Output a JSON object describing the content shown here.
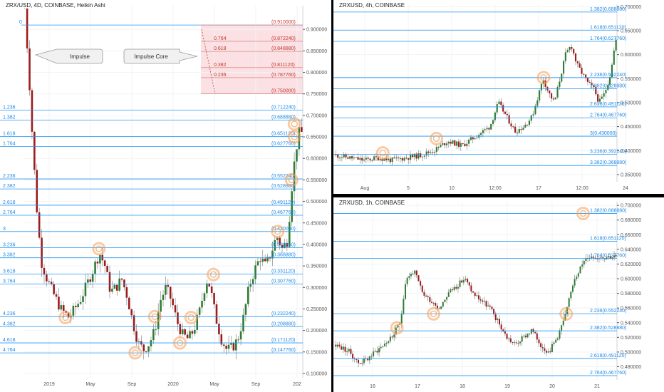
{
  "colors": {
    "up": "#2e7d32",
    "down": "#9b1c1c",
    "fib": "#2196f3",
    "fibText": "#1e88e5",
    "zone": "#f8c9cd",
    "zoneText": "#c0392b",
    "circle": "#f4a05a",
    "grid": "#f1f3f6",
    "axis": "#555555"
  },
  "charts": [
    {
      "id": "left",
      "title": "ZRX/USD, 4D, COINBASE, Heikin Ashi",
      "type": "candlestick",
      "ylim": [
        0.09,
        0.955
      ],
      "y_ticks": [
        "0.900000",
        "0.850000",
        "0.800000",
        "0.750000",
        "0.700000",
        "0.650000",
        "0.600000",
        "0.550000",
        "0.500000",
        "0.450000",
        "0.400000",
        "0.350000",
        "0.300000",
        "0.250000",
        "0.200000",
        "0.150000",
        "0.100000"
      ],
      "x_ticks": [
        "2019",
        "May",
        "Sep",
        "2020",
        "May",
        "Sep",
        "202"
      ],
      "levels": [
        {
          "ratio": "1.236",
          "label": "(0.712240)",
          "value": 0.71224
        },
        {
          "ratio": "1.382",
          "label": "(0.688880)",
          "value": 0.68888
        },
        {
          "ratio": "1.618",
          "label": "(0.651120)",
          "value": 0.65112
        },
        {
          "ratio": "1.764",
          "label": "(0.627760)",
          "value": 0.62776
        },
        {
          "ratio": "2.236",
          "label": "(0.552240)",
          "value": 0.55224
        },
        {
          "ratio": "2.382",
          "label": "(0.528880)",
          "value": 0.52888
        },
        {
          "ratio": "2.618",
          "label": "(0.491120)",
          "value": 0.49112
        },
        {
          "ratio": "2.764",
          "label": "(0.467760)",
          "value": 0.46776
        },
        {
          "ratio": "3",
          "label": "(0.430000)",
          "value": 0.43
        },
        {
          "ratio": "3.236",
          "label": "(0.392240)",
          "value": 0.39224
        },
        {
          "ratio": "3.382",
          "label": "(0.368880)",
          "value": 0.36888
        },
        {
          "ratio": "3.618",
          "label": "(0.331120)",
          "value": 0.33112
        },
        {
          "ratio": "3.764",
          "label": "(0.307760)",
          "value": 0.30776
        },
        {
          "ratio": "4.236",
          "label": "(0.232240)",
          "value": 0.23224
        },
        {
          "ratio": "4.382",
          "label": "(0.208880)",
          "value": 0.20888
        },
        {
          "ratio": "4.618",
          "label": "(0.171120)",
          "value": 0.17112
        },
        {
          "ratio": "4.764",
          "label": "(0.147760)",
          "value": 0.14776
        }
      ],
      "zero_level": {
        "ratio": "0",
        "value": 0.91
      },
      "retracement": [
        {
          "ratio": "",
          "label": "(0.910000)",
          "value": 0.91
        },
        {
          "ratio": "0.764",
          "label": "(0.872240)",
          "value": 0.87224
        },
        {
          "ratio": "0.618",
          "label": "(0.848880)",
          "value": 0.84888
        },
        {
          "ratio": "0.382",
          "label": "(0.811120)",
          "value": 0.81112
        },
        {
          "ratio": "0.236",
          "label": "(0.787760)",
          "value": 0.78776
        },
        {
          "ratio": "",
          "label": "(0.750000)",
          "value": 0.75
        }
      ],
      "callouts": [
        {
          "text": "Impulse",
          "pointer": "left"
        },
        {
          "text": "Impulse Core",
          "pointer": "right"
        }
      ],
      "path": [
        [
          0,
          0.95
        ],
        [
          0.015,
          0.8
        ],
        [
          0.03,
          0.62
        ],
        [
          0.045,
          0.47
        ],
        [
          0.06,
          0.36
        ],
        [
          0.08,
          0.32
        ],
        [
          0.1,
          0.29
        ],
        [
          0.13,
          0.25
        ],
        [
          0.16,
          0.23
        ],
        [
          0.2,
          0.27
        ],
        [
          0.24,
          0.33
        ],
        [
          0.27,
          0.38
        ],
        [
          0.29,
          0.35
        ],
        [
          0.31,
          0.29
        ],
        [
          0.33,
          0.3
        ],
        [
          0.35,
          0.32
        ],
        [
          0.37,
          0.28
        ],
        [
          0.39,
          0.22
        ],
        [
          0.41,
          0.17
        ],
        [
          0.43,
          0.155
        ],
        [
          0.45,
          0.17
        ],
        [
          0.47,
          0.2
        ],
        [
          0.49,
          0.27
        ],
        [
          0.51,
          0.3
        ],
        [
          0.53,
          0.27
        ],
        [
          0.55,
          0.22
        ],
        [
          0.57,
          0.19
        ],
        [
          0.59,
          0.18
        ],
        [
          0.61,
          0.2
        ],
        [
          0.63,
          0.24
        ],
        [
          0.65,
          0.3
        ],
        [
          0.66,
          0.32
        ],
        [
          0.67,
          0.3
        ],
        [
          0.69,
          0.23
        ],
        [
          0.71,
          0.18
        ],
        [
          0.73,
          0.155
        ],
        [
          0.75,
          0.16
        ],
        [
          0.77,
          0.18
        ],
        [
          0.79,
          0.23
        ],
        [
          0.81,
          0.3
        ],
        [
          0.83,
          0.34
        ],
        [
          0.85,
          0.37
        ],
        [
          0.87,
          0.35
        ],
        [
          0.89,
          0.38
        ],
        [
          0.91,
          0.42
        ],
        [
          0.93,
          0.39
        ],
        [
          0.95,
          0.41
        ],
        [
          0.96,
          0.5
        ],
        [
          0.97,
          0.57
        ],
        [
          0.98,
          0.62
        ],
        [
          0.99,
          0.66
        ]
      ],
      "circles": [
        [
          0.97,
          0.68
        ],
        [
          0.97,
          0.65
        ],
        [
          0.96,
          0.55
        ],
        [
          0.91,
          0.43
        ],
        [
          0.27,
          0.39
        ],
        [
          0.15,
          0.23
        ],
        [
          0.6,
          0.23
        ],
        [
          0.47,
          0.232
        ],
        [
          0.4,
          0.148
        ],
        [
          0.56,
          0.171
        ],
        [
          0.68,
          0.33
        ]
      ]
    },
    {
      "id": "top-right",
      "title": "ZRXUSD, 4h, COINBASE",
      "type": "candlestick",
      "ylim": [
        0.335,
        0.705
      ],
      "y_ticks": [
        "0.700000",
        "0.650000",
        "0.600000",
        "0.550000",
        "0.500000",
        "0.450000",
        "0.400000",
        "0.350000"
      ],
      "x_ticks": [
        "Aug",
        "5",
        "10",
        "12:00",
        "17",
        "12:00",
        "24"
      ],
      "levels": [
        {
          "ratio": "1.382",
          "label": "(0.688880)",
          "value": 0.68888
        },
        {
          "ratio": "1.618",
          "label": "(0.651120)",
          "value": 0.65112
        },
        {
          "ratio": "1.764",
          "label": "(0.627760)",
          "value": 0.62776
        },
        {
          "ratio": "2.236",
          "label": "(0.552240)",
          "value": 0.55224
        },
        {
          "ratio": "2.382",
          "label": "(0.528880)",
          "value": 0.52888
        },
        {
          "ratio": "2.618",
          "label": "(0.491120)",
          "value": 0.49112
        },
        {
          "ratio": "2.764",
          "label": "(0.467760)",
          "value": 0.46776
        },
        {
          "ratio": "3",
          "label": "(0.430000)",
          "value": 0.43
        },
        {
          "ratio": "3.236",
          "label": "(0.392240)",
          "value": 0.39224
        },
        {
          "ratio": "3.382",
          "label": "(0.368880)",
          "value": 0.36888
        }
      ],
      "path": [
        [
          0,
          0.39
        ],
        [
          0.05,
          0.385
        ],
        [
          0.1,
          0.38
        ],
        [
          0.15,
          0.385
        ],
        [
          0.2,
          0.38
        ],
        [
          0.25,
          0.385
        ],
        [
          0.3,
          0.39
        ],
        [
          0.35,
          0.4
        ],
        [
          0.4,
          0.42
        ],
        [
          0.45,
          0.41
        ],
        [
          0.5,
          0.43
        ],
        [
          0.55,
          0.45
        ],
        [
          0.58,
          0.5
        ],
        [
          0.61,
          0.47
        ],
        [
          0.64,
          0.44
        ],
        [
          0.67,
          0.45
        ],
        [
          0.7,
          0.47
        ],
        [
          0.72,
          0.51
        ],
        [
          0.74,
          0.55
        ],
        [
          0.76,
          0.52
        ],
        [
          0.78,
          0.5
        ],
        [
          0.8,
          0.55
        ],
        [
          0.82,
          0.6
        ],
        [
          0.84,
          0.62
        ],
        [
          0.86,
          0.58
        ],
        [
          0.88,
          0.56
        ],
        [
          0.9,
          0.54
        ],
        [
          0.92,
          0.53
        ],
        [
          0.94,
          0.5
        ],
        [
          0.96,
          0.52
        ],
        [
          0.98,
          0.56
        ],
        [
          0.99,
          0.6
        ],
        [
          1.0,
          0.63
        ]
      ],
      "circles": [
        [
          0.17,
          0.395
        ],
        [
          0.36,
          0.425
        ],
        [
          0.74,
          0.552
        ]
      ]
    },
    {
      "id": "bottom-right",
      "title": "ZRXUSD, 1h, COINBASE",
      "type": "candlestick",
      "ylim": [
        0.462,
        0.705
      ],
      "y_ticks": [
        "0.700000",
        "0.680000",
        "0.660000",
        "0.640000",
        "0.620000",
        "0.600000",
        "0.580000",
        "0.560000",
        "0.540000",
        "0.520000",
        "0.500000",
        "0.480000"
      ],
      "x_ticks": [
        "16",
        "17",
        "18",
        "19",
        "20",
        "21"
      ],
      "levels": [
        {
          "ratio": "1.382",
          "label": "(0.688880)",
          "value": 0.68888
        },
        {
          "ratio": "1.618",
          "label": "(0.651120)",
          "value": 0.65112
        },
        {
          "ratio": "1.764",
          "label": "(0.627760)",
          "value": 0.62776
        },
        {
          "ratio": "2.236",
          "label": "(0.552240)",
          "value": 0.55224
        },
        {
          "ratio": "2.382",
          "label": "(0.528880)",
          "value": 0.52888
        },
        {
          "ratio": "2.618",
          "label": "(0.491120)",
          "value": 0.49112
        },
        {
          "ratio": "2.764",
          "label": "(0.467760)",
          "value": 0.46776
        }
      ],
      "path": [
        [
          0,
          0.51
        ],
        [
          0.05,
          0.5
        ],
        [
          0.08,
          0.485
        ],
        [
          0.11,
          0.49
        ],
        [
          0.14,
          0.5
        ],
        [
          0.17,
          0.51
        ],
        [
          0.2,
          0.52
        ],
        [
          0.23,
          0.54
        ],
        [
          0.25,
          0.6
        ],
        [
          0.28,
          0.61
        ],
        [
          0.31,
          0.58
        ],
        [
          0.34,
          0.57
        ],
        [
          0.37,
          0.56
        ],
        [
          0.4,
          0.58
        ],
        [
          0.43,
          0.59
        ],
        [
          0.46,
          0.6
        ],
        [
          0.49,
          0.58
        ],
        [
          0.52,
          0.57
        ],
        [
          0.55,
          0.56
        ],
        [
          0.58,
          0.54
        ],
        [
          0.61,
          0.52
        ],
        [
          0.64,
          0.51
        ],
        [
          0.67,
          0.52
        ],
        [
          0.7,
          0.53
        ],
        [
          0.73,
          0.51
        ],
        [
          0.76,
          0.5
        ],
        [
          0.79,
          0.52
        ],
        [
          0.82,
          0.55
        ],
        [
          0.85,
          0.6
        ],
        [
          0.88,
          0.62
        ],
        [
          0.9,
          0.63
        ]
      ],
      "circles": [
        [
          0.22,
          0.533
        ],
        [
          0.35,
          0.552
        ],
        [
          0.82,
          0.552
        ],
        [
          0.88,
          0.689
        ]
      ]
    }
  ]
}
